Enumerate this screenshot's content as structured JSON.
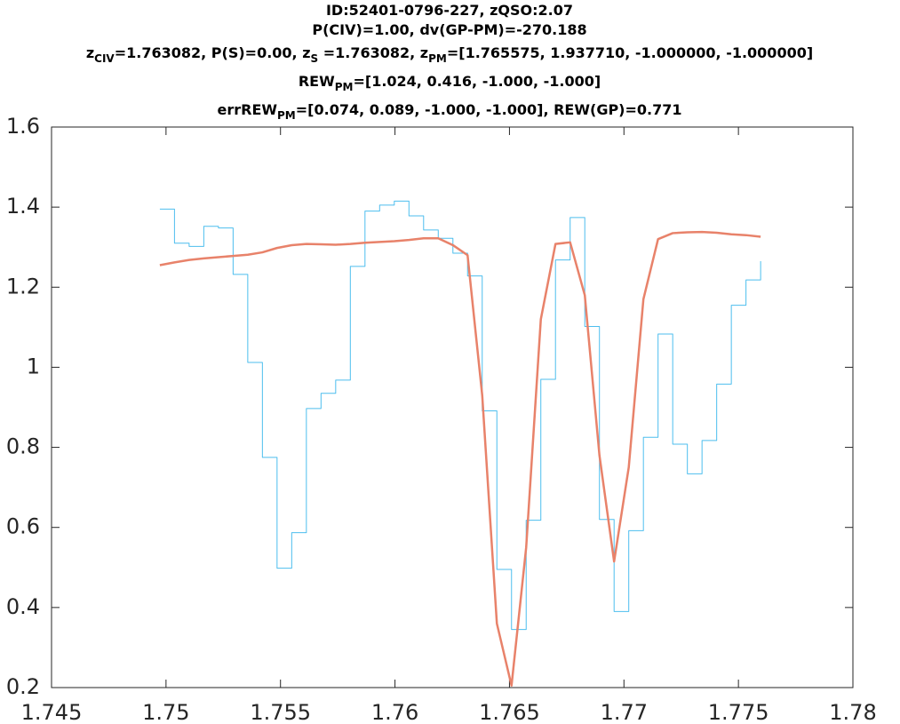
{
  "chart_data": {
    "type": "line",
    "title": [
      [
        {
          "text": "ID:52401-0796-227, zQSO:2.07"
        }
      ],
      [
        {
          "text": "P(CIV)=1.00, dv(GP-PM)=-270.188"
        }
      ],
      [
        {
          "text": "z"
        },
        {
          "sub": "CIV"
        },
        {
          "text": "=1.763082, P(S)=0.00, z"
        },
        {
          "sub": "S"
        },
        {
          "text": " =1.763082, z"
        },
        {
          "sub": "PM"
        },
        {
          "text": "=[1.765575, 1.937710, -1.000000, -1.000000]"
        }
      ],
      [
        {
          "text": "REW"
        },
        {
          "sub": "PM"
        },
        {
          "text": "=[1.024, 0.416, -1.000, -1.000]"
        }
      ],
      [
        {
          "text": "errREW"
        },
        {
          "sub": "PM"
        },
        {
          "text": "=[0.074, 0.089, -1.000, -1.000], REW(GP)=0.771"
        }
      ]
    ],
    "x": [
      1.74973,
      1.75037,
      1.75101,
      1.75165,
      1.75229,
      1.75293,
      1.75357,
      1.75421,
      1.75485,
      1.75549,
      1.75613,
      1.75677,
      1.75741,
      1.75805,
      1.75869,
      1.75933,
      1.75997,
      1.76061,
      1.76125,
      1.76189,
      1.76253,
      1.76317,
      1.76381,
      1.76445,
      1.76509,
      1.76573,
      1.76637,
      1.76701,
      1.76765,
      1.76829,
      1.76893,
      1.76957,
      1.77021,
      1.77085,
      1.77149,
      1.77213,
      1.77277,
      1.77341,
      1.77405,
      1.77469,
      1.77533,
      1.77597
    ],
    "series": [
      {
        "style": "step",
        "color": "#4dbeee",
        "width": 1,
        "values": [
          1.395,
          1.31,
          1.302,
          1.352,
          1.348,
          1.232,
          1.012,
          0.775,
          0.498,
          0.587,
          0.897,
          0.935,
          0.968,
          1.252,
          1.39,
          1.405,
          1.415,
          1.378,
          1.343,
          1.322,
          1.285,
          1.228,
          0.891,
          0.495,
          0.345,
          0.618,
          0.97,
          1.268,
          1.374,
          1.102,
          0.62,
          0.39,
          0.592,
          0.825,
          1.083,
          0.808,
          0.734,
          0.817,
          0.958,
          1.155,
          1.218,
          1.265
        ]
      },
      {
        "style": "line",
        "color": "#e8826a",
        "width": 2.5,
        "values": [
          1.255,
          1.262,
          1.268,
          1.272,
          1.275,
          1.278,
          1.281,
          1.287,
          1.298,
          1.305,
          1.308,
          1.307,
          1.306,
          1.308,
          1.311,
          1.313,
          1.315,
          1.318,
          1.322,
          1.322,
          1.305,
          1.28,
          0.93,
          0.36,
          0.205,
          0.55,
          1.12,
          1.308,
          1.312,
          1.18,
          0.78,
          0.515,
          0.75,
          1.17,
          1.32,
          1.335,
          1.337,
          1.338,
          1.336,
          1.332,
          1.33,
          1.326
        ]
      }
    ],
    "xlim": [
      1.745,
      1.78
    ],
    "xticks": [
      1.745,
      1.75,
      1.755,
      1.76,
      1.765,
      1.77,
      1.775,
      1.78
    ],
    "ylim": [
      0.2,
      1.6
    ],
    "yticks": [
      0.2,
      0.4,
      0.6,
      0.8,
      1,
      1.2,
      1.4,
      1.6
    ]
  }
}
